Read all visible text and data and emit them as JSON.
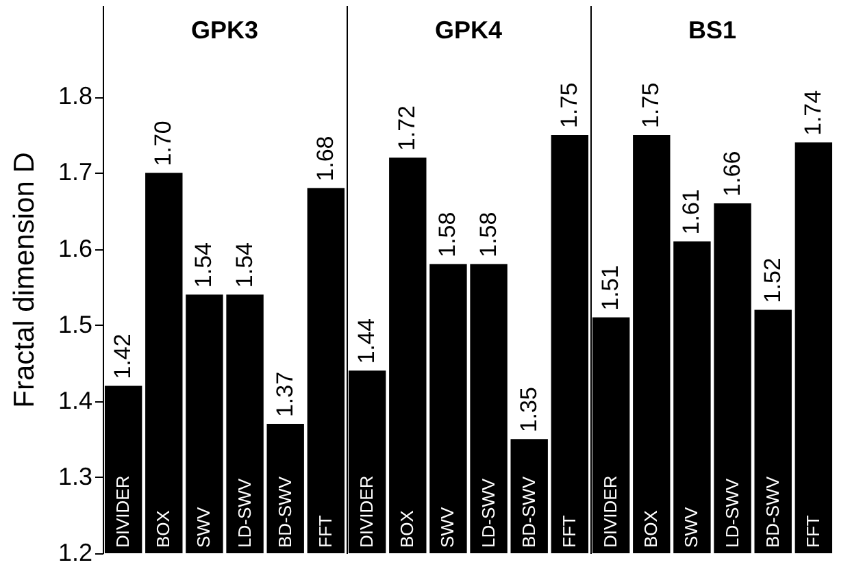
{
  "chart_data": [
    {
      "type": "bar",
      "title": "GPK3",
      "ylabel": "Fractal dimension D",
      "categories": [
        "DIVIDER",
        "BOX",
        "SWV",
        "LD-SWV",
        "BD-SWV",
        "FFT"
      ],
      "values": [
        1.42,
        1.7,
        1.54,
        1.54,
        1.37,
        1.68
      ],
      "color": "#000000",
      "value_labels": [
        "1.42",
        "1.70",
        "1.54",
        "1.54",
        "1.37",
        "1.68"
      ],
      "ylim": [
        1.2,
        1.92
      ],
      "yticks": [
        1.2,
        1.3,
        1.4,
        1.5,
        1.6,
        1.7,
        1.8
      ]
    },
    {
      "type": "bar",
      "title": "GPK4",
      "categories": [
        "DIVIDER",
        "BOX",
        "SWV",
        "LD-SWV",
        "BD-SWV",
        "FFT"
      ],
      "values": [
        1.44,
        1.72,
        1.58,
        1.58,
        1.35,
        1.75
      ],
      "color": "#000000",
      "value_labels": [
        "1.44",
        "1.72",
        "1.58",
        "1.58",
        "1.35",
        "1.75"
      ],
      "ylim": [
        1.2,
        1.92
      ],
      "tick_labels": "x"
    },
    {
      "type": "bar",
      "title": "BS1",
      "categories": [
        "DIVIDER",
        "BOX",
        "SWV",
        "LD-SWV",
        "BD-SWV",
        "FFT"
      ],
      "values": [
        1.51,
        1.75,
        1.61,
        1.66,
        1.52,
        1.74
      ],
      "color": "#000000",
      "value_labels": [
        "1.51",
        "1.75",
        "1.61",
        "1.66",
        "1.52",
        "1.74"
      ],
      "ylim": [
        1.2,
        1.92
      ],
      "tick_labels": "x"
    }
  ]
}
